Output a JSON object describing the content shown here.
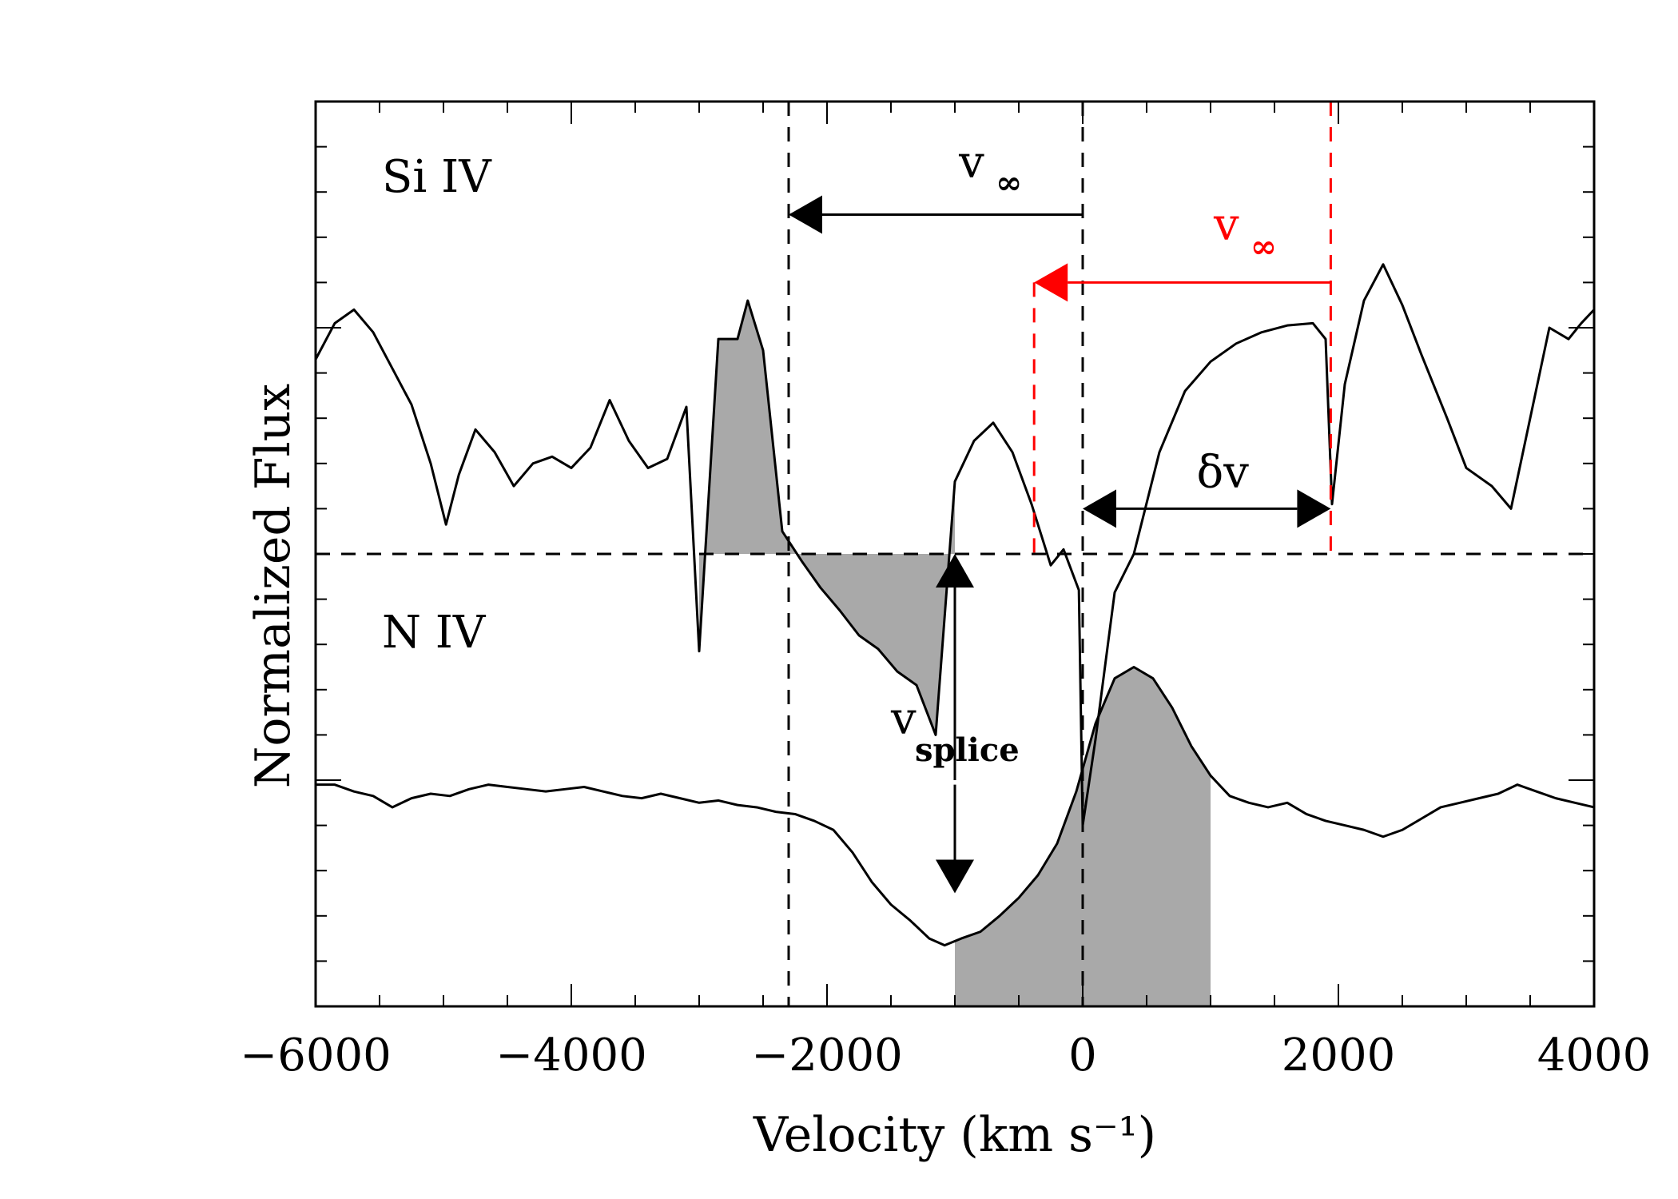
{
  "chart_data": {
    "type": "line",
    "title": "",
    "xlabel": "Velocity (km s⁻¹)",
    "ylabel": "Normalized Flux",
    "xlim": [
      -6000,
      4000
    ],
    "ylim": [
      0,
      4
    ],
    "xticks": [
      -6000,
      -4000,
      -2000,
      0,
      2000,
      4000
    ],
    "xtick_labels": [
      "−6000",
      "−4000",
      "−2000",
      "0",
      "2000",
      "4000"
    ],
    "panel_divider_y": 2.0,
    "continuum_marks": [
      3.0,
      1.0
    ],
    "series": [
      {
        "name": "Si IV",
        "points": [
          [
            -6000,
            2.86
          ],
          [
            -5850,
            3.02
          ],
          [
            -5700,
            3.08
          ],
          [
            -5550,
            2.98
          ],
          [
            -5400,
            2.82
          ],
          [
            -5250,
            2.66
          ],
          [
            -5100,
            2.4
          ],
          [
            -4980,
            2.13
          ],
          [
            -4880,
            2.35
          ],
          [
            -4750,
            2.55
          ],
          [
            -4600,
            2.45
          ],
          [
            -4450,
            2.3
          ],
          [
            -4300,
            2.4
          ],
          [
            -4150,
            2.43
          ],
          [
            -4000,
            2.38
          ],
          [
            -3850,
            2.47
          ],
          [
            -3700,
            2.68
          ],
          [
            -3550,
            2.5
          ],
          [
            -3400,
            2.38
          ],
          [
            -3250,
            2.42
          ],
          [
            -3100,
            2.65
          ],
          [
            -3000,
            1.57
          ],
          [
            -2850,
            2.95
          ],
          [
            -2700,
            2.95
          ],
          [
            -2620,
            3.12
          ],
          [
            -2500,
            2.9
          ],
          [
            -2350,
            2.1
          ],
          [
            -2200,
            1.97
          ],
          [
            -2050,
            1.85
          ],
          [
            -1900,
            1.75
          ],
          [
            -1750,
            1.64
          ],
          [
            -1600,
            1.58
          ],
          [
            -1450,
            1.48
          ],
          [
            -1300,
            1.42
          ],
          [
            -1150,
            1.2
          ],
          [
            -1000,
            2.32
          ],
          [
            -850,
            2.5
          ],
          [
            -700,
            2.58
          ],
          [
            -550,
            2.45
          ],
          [
            -400,
            2.22
          ],
          [
            -250,
            1.95
          ],
          [
            -150,
            2.02
          ],
          [
            -30,
            1.84
          ],
          [
            0,
            0.8
          ],
          [
            100,
            1.18
          ],
          [
            250,
            1.83
          ],
          [
            400,
            2.0
          ],
          [
            600,
            2.45
          ],
          [
            800,
            2.72
          ],
          [
            1000,
            2.85
          ],
          [
            1200,
            2.93
          ],
          [
            1400,
            2.98
          ],
          [
            1600,
            3.01
          ],
          [
            1800,
            3.02
          ],
          [
            1900,
            2.95
          ],
          [
            1950,
            2.22
          ],
          [
            2050,
            2.75
          ],
          [
            2200,
            3.12
          ],
          [
            2350,
            3.28
          ],
          [
            2500,
            3.1
          ],
          [
            2650,
            2.88
          ],
          [
            2850,
            2.6
          ],
          [
            3000,
            2.38
          ],
          [
            3200,
            2.3
          ],
          [
            3350,
            2.2
          ],
          [
            3500,
            2.6
          ],
          [
            3650,
            3.0
          ],
          [
            3800,
            2.95
          ],
          [
            3900,
            3.02
          ],
          [
            4000,
            3.08
          ]
        ],
        "shaded_range": [
          -3000,
          -1000
        ]
      },
      {
        "name": "N IV",
        "points": [
          [
            -6000,
            0.98
          ],
          [
            -5850,
            0.98
          ],
          [
            -5700,
            0.95
          ],
          [
            -5550,
            0.93
          ],
          [
            -5400,
            0.88
          ],
          [
            -5250,
            0.92
          ],
          [
            -5100,
            0.94
          ],
          [
            -4950,
            0.93
          ],
          [
            -4800,
            0.96
          ],
          [
            -4650,
            0.98
          ],
          [
            -4500,
            0.97
          ],
          [
            -4350,
            0.96
          ],
          [
            -4200,
            0.95
          ],
          [
            -4050,
            0.96
          ],
          [
            -3900,
            0.97
          ],
          [
            -3750,
            0.95
          ],
          [
            -3600,
            0.93
          ],
          [
            -3450,
            0.92
          ],
          [
            -3300,
            0.94
          ],
          [
            -3150,
            0.92
          ],
          [
            -3000,
            0.9
          ],
          [
            -2850,
            0.91
          ],
          [
            -2700,
            0.89
          ],
          [
            -2550,
            0.88
          ],
          [
            -2400,
            0.86
          ],
          [
            -2250,
            0.85
          ],
          [
            -2100,
            0.82
          ],
          [
            -1950,
            0.78
          ],
          [
            -1800,
            0.68
          ],
          [
            -1650,
            0.55
          ],
          [
            -1500,
            0.45
          ],
          [
            -1350,
            0.38
          ],
          [
            -1200,
            0.3
          ],
          [
            -1080,
            0.27
          ],
          [
            -950,
            0.3
          ],
          [
            -800,
            0.33
          ],
          [
            -650,
            0.4
          ],
          [
            -500,
            0.48
          ],
          [
            -350,
            0.58
          ],
          [
            -200,
            0.72
          ],
          [
            -50,
            0.95
          ],
          [
            100,
            1.25
          ],
          [
            250,
            1.45
          ],
          [
            400,
            1.5
          ],
          [
            550,
            1.45
          ],
          [
            700,
            1.32
          ],
          [
            850,
            1.15
          ],
          [
            1000,
            1.02
          ],
          [
            1150,
            0.93
          ],
          [
            1300,
            0.9
          ],
          [
            1450,
            0.88
          ],
          [
            1600,
            0.9
          ],
          [
            1750,
            0.85
          ],
          [
            1900,
            0.82
          ],
          [
            2050,
            0.8
          ],
          [
            2200,
            0.78
          ],
          [
            2350,
            0.75
          ],
          [
            2500,
            0.78
          ],
          [
            2650,
            0.83
          ],
          [
            2800,
            0.88
          ],
          [
            2950,
            0.9
          ],
          [
            3100,
            0.92
          ],
          [
            3250,
            0.94
          ],
          [
            3400,
            0.98
          ],
          [
            3550,
            0.95
          ],
          [
            3700,
            0.92
          ],
          [
            3850,
            0.9
          ],
          [
            4000,
            0.88
          ]
        ],
        "shaded_range": [
          -1000,
          1000
        ]
      }
    ],
    "vlines": [
      {
        "x": -2300,
        "color": "#000000",
        "style": "dashed"
      },
      {
        "x": 0,
        "color": "#000000",
        "style": "dashed"
      },
      {
        "x": -380,
        "color": "#ff0000",
        "style": "dashed"
      },
      {
        "x": 1940,
        "color": "#ff0000",
        "style": "dashed"
      }
    ],
    "annotations": {
      "si_iv_label": "Si IV",
      "n_iv_label": "N IV",
      "vinf_black": {
        "base": "v",
        "sub": "∞",
        "color": "#000000",
        "from": 0,
        "to": -2300,
        "y": 3.5
      },
      "vinf_red": {
        "base": "v",
        "sub": "∞",
        "color": "#ff0000",
        "from": 1940,
        "to": -380,
        "y": 3.2
      },
      "delta_v": {
        "label": "δv",
        "from": 0,
        "to": 1940,
        "y": 2.2
      },
      "vsplice": {
        "base": "v",
        "sub": "splice",
        "x": -1000,
        "up_arrow": [
          1.0,
          2.0
        ],
        "down_arrow": [
          0.98,
          0.5
        ]
      }
    }
  }
}
